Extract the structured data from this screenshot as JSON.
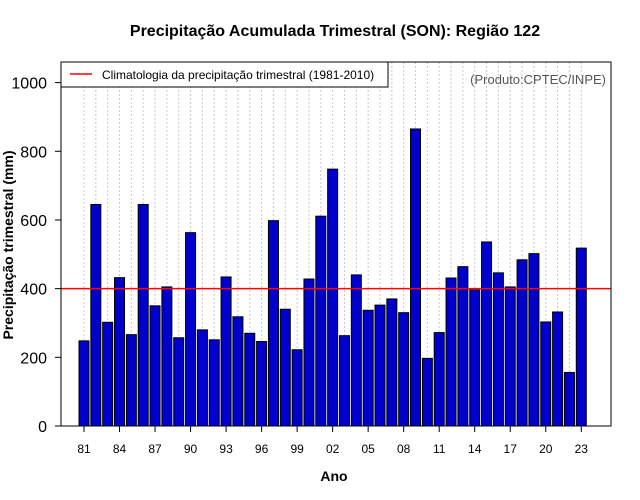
{
  "chart_data": {
    "type": "bar",
    "title": "Precipitação Acumulada Trimestral (SON): Região 122",
    "xlabel": "Ano",
    "ylabel": "Precipitação trimestral (mm)",
    "ylim": [
      0,
      1060
    ],
    "yticks": [
      0,
      200,
      400,
      600,
      800,
      1000
    ],
    "x_tick_labels": [
      "81",
      "84",
      "87",
      "90",
      "93",
      "96",
      "99",
      "02",
      "05",
      "08",
      "11",
      "14",
      "17",
      "20",
      "23"
    ],
    "categories": [
      "1981",
      "1982",
      "1983",
      "1984",
      "1985",
      "1986",
      "1987",
      "1988",
      "1989",
      "1990",
      "1991",
      "1992",
      "1993",
      "1994",
      "1995",
      "1996",
      "1997",
      "1998",
      "1999",
      "2000",
      "2001",
      "2002",
      "2003",
      "2004",
      "2005",
      "2006",
      "2007",
      "2008",
      "2009",
      "2010",
      "2011",
      "2012",
      "2013",
      "2014",
      "2015",
      "2016",
      "2017",
      "2018",
      "2019",
      "2020",
      "2021",
      "2022",
      "2023"
    ],
    "values": [
      248,
      645,
      302,
      432,
      266,
      645,
      350,
      405,
      257,
      563,
      280,
      251,
      434,
      318,
      270,
      246,
      598,
      340,
      222,
      428,
      611,
      748,
      263,
      440,
      337,
      352,
      370,
      330,
      865,
      197,
      272,
      431,
      464,
      396,
      536,
      446,
      405,
      484,
      502,
      303,
      332,
      156,
      518
    ],
    "climatology": {
      "label": "Climatologia da precipitação trimestral (1981-2010)",
      "value": 400
    },
    "legend_position": "top-left",
    "grid_x": true,
    "bar_color": "#0000cc",
    "line_color": "#ff0000",
    "source_note": "(Produto:CPTEC/INPE)"
  }
}
